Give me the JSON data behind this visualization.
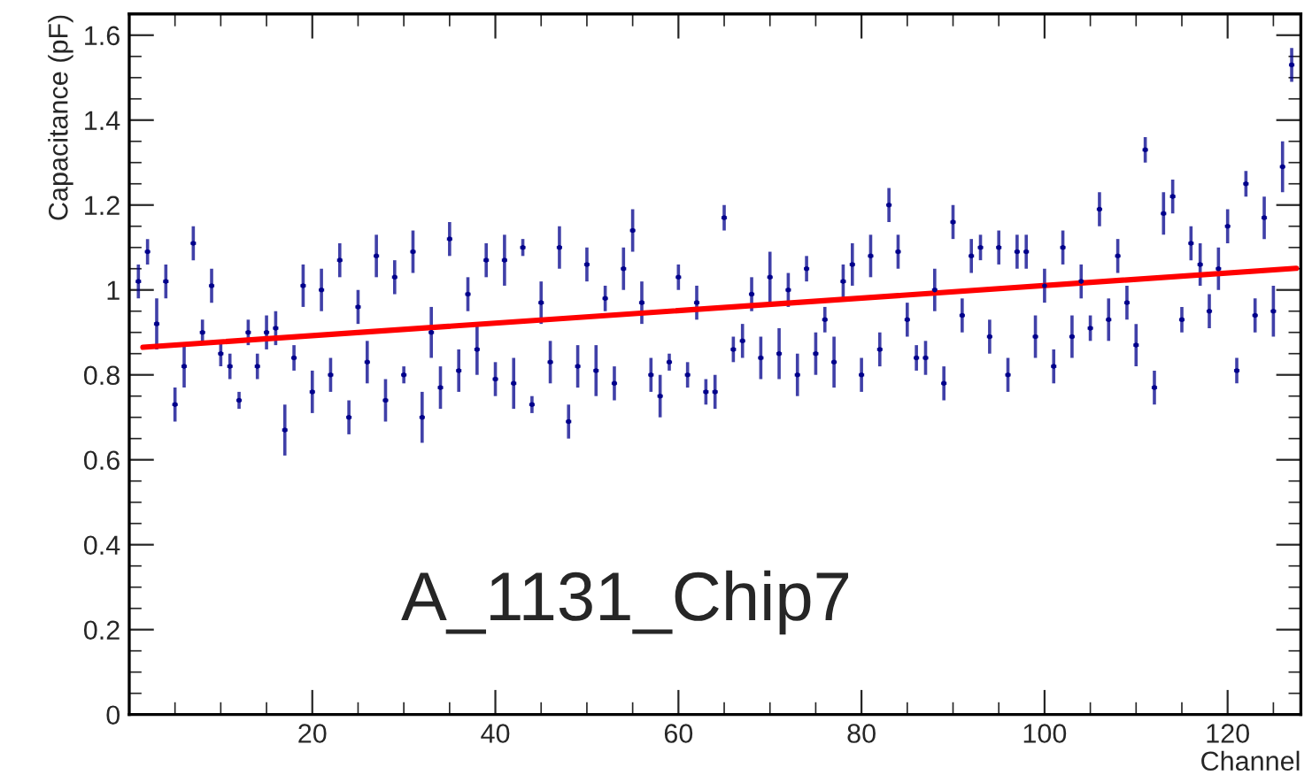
{
  "chart_data": {
    "type": "scatter",
    "xlabel": "Channel",
    "ylabel": "Capacitance (pF)",
    "annotations": [
      "A_1131_Chip7"
    ],
    "xlim": [
      0,
      128
    ],
    "xticks": [
      20,
      40,
      60,
      80,
      100,
      120
    ],
    "ylim": [
      0,
      1.65
    ],
    "yticks": [
      0,
      0.2,
      0.4,
      0.6,
      0.8,
      1,
      1.2,
      1.4,
      1.6
    ],
    "grid": false,
    "series": [
      {
        "color": "#00008b",
        "marker": "circle",
        "x": [
          1,
          2,
          3,
          4,
          5,
          6,
          7,
          8,
          9,
          10,
          11,
          12,
          13,
          14,
          15,
          16,
          17,
          18,
          19,
          20,
          21,
          22,
          23,
          24,
          25,
          26,
          27,
          28,
          29,
          30,
          31,
          32,
          33,
          34,
          35,
          36,
          37,
          38,
          39,
          40,
          41,
          42,
          43,
          44,
          45,
          46,
          47,
          48,
          49,
          50,
          51,
          52,
          53,
          54,
          55,
          56,
          57,
          58,
          59,
          60,
          61,
          62,
          63,
          64,
          65,
          66,
          67,
          68,
          69,
          70,
          71,
          72,
          73,
          74,
          75,
          76,
          77,
          78,
          79,
          80,
          81,
          82,
          83,
          84,
          85,
          86,
          87,
          88,
          89,
          90,
          91,
          92,
          93,
          94,
          95,
          96,
          97,
          98,
          99,
          100,
          101,
          102,
          103,
          104,
          105,
          106,
          107,
          108,
          109,
          110,
          111,
          112,
          113,
          114,
          115,
          116,
          117,
          118,
          119,
          120,
          121,
          122,
          123,
          124,
          125,
          126,
          127
        ],
        "values": [
          1.02,
          1.09,
          0.92,
          1.02,
          0.73,
          0.82,
          1.11,
          0.9,
          1.01,
          0.85,
          0.82,
          0.74,
          0.9,
          0.82,
          0.9,
          0.91,
          0.67,
          0.84,
          1.01,
          0.76,
          1.0,
          0.8,
          1.07,
          0.7,
          0.96,
          0.83,
          1.08,
          0.74,
          1.03,
          0.8,
          1.09,
          0.7,
          0.9,
          0.77,
          1.12,
          0.81,
          0.99,
          0.86,
          1.07,
          0.79,
          1.07,
          0.78,
          1.1,
          0.73,
          0.97,
          0.83,
          1.1,
          0.69,
          0.82,
          1.06,
          0.81,
          0.98,
          0.78,
          1.05,
          1.14,
          0.97,
          0.8,
          0.75,
          0.83,
          1.03,
          0.8,
          0.97,
          0.76,
          0.76,
          1.17,
          0.86,
          0.88,
          0.99,
          0.84,
          1.03,
          0.85,
          1.0,
          0.8,
          1.05,
          0.85,
          0.93,
          0.83,
          1.02,
          1.06,
          0.8,
          1.08,
          0.86,
          1.2,
          1.09,
          0.93,
          0.84,
          0.84,
          1.0,
          0.78,
          1.16,
          0.94,
          1.08,
          1.1,
          0.89,
          1.1,
          0.8,
          1.09,
          1.09,
          0.89,
          1.01,
          0.82,
          1.1,
          0.89,
          1.02,
          0.91,
          1.19,
          0.93,
          1.08,
          0.97,
          0.87,
          1.33,
          0.77,
          1.18,
          1.22,
          0.93,
          1.11,
          1.06,
          0.95,
          1.05,
          1.15,
          0.81,
          1.25,
          0.94,
          1.17,
          0.95,
          1.29,
          1.53
        ],
        "errors": [
          0.04,
          0.03,
          0.06,
          0.04,
          0.04,
          0.05,
          0.04,
          0.03,
          0.04,
          0.03,
          0.03,
          0.02,
          0.03,
          0.03,
          0.04,
          0.04,
          0.06,
          0.03,
          0.05,
          0.05,
          0.05,
          0.04,
          0.04,
          0.04,
          0.04,
          0.05,
          0.05,
          0.05,
          0.04,
          0.02,
          0.05,
          0.06,
          0.06,
          0.05,
          0.04,
          0.05,
          0.04,
          0.06,
          0.04,
          0.04,
          0.06,
          0.06,
          0.02,
          0.02,
          0.05,
          0.05,
          0.05,
          0.04,
          0.05,
          0.04,
          0.06,
          0.03,
          0.04,
          0.05,
          0.05,
          0.05,
          0.04,
          0.05,
          0.02,
          0.03,
          0.03,
          0.04,
          0.03,
          0.04,
          0.03,
          0.03,
          0.04,
          0.04,
          0.05,
          0.06,
          0.06,
          0.04,
          0.05,
          0.03,
          0.05,
          0.03,
          0.06,
          0.04,
          0.05,
          0.04,
          0.05,
          0.04,
          0.04,
          0.04,
          0.04,
          0.03,
          0.04,
          0.05,
          0.04,
          0.04,
          0.04,
          0.04,
          0.03,
          0.04,
          0.04,
          0.04,
          0.04,
          0.04,
          0.05,
          0.04,
          0.04,
          0.04,
          0.05,
          0.04,
          0.03,
          0.04,
          0.05,
          0.04,
          0.04,
          0.05,
          0.03,
          0.04,
          0.05,
          0.04,
          0.03,
          0.04,
          0.05,
          0.04,
          0.05,
          0.04,
          0.03,
          0.03,
          0.04,
          0.05,
          0.06,
          0.06,
          0.04
        ],
        "xerrors": [
          0.3,
          0.3,
          0.3,
          0.3,
          0.3,
          0.3,
          0.3,
          0.3,
          0.3,
          0.3,
          0.3,
          0.3,
          0.3,
          0.3,
          0.3,
          0.3,
          0.3,
          0.3,
          0.3,
          0.3,
          0.3,
          0.3,
          0.3,
          0.3,
          0.3,
          0.3,
          0.3,
          0.3,
          0.3,
          0.3,
          0.3,
          0.3,
          0.3,
          0.3,
          0.3,
          0.3,
          0.3,
          0.3,
          0.3,
          0.3,
          0.3,
          0.3,
          0.3,
          0.3,
          0.3,
          0.3,
          0.3,
          0.3,
          0.3,
          0.3,
          0.3,
          0.3,
          0.3,
          0.3,
          0.3,
          0.3,
          0.3,
          0.3,
          0.3,
          0.3,
          0.3,
          0.3,
          0.3,
          0.3,
          0.3,
          0.3,
          0.3,
          0.3,
          0.3,
          0.3,
          0.3,
          0.3,
          0.3,
          0.3,
          0.3,
          0.3,
          0.3,
          0.3,
          0.3,
          0.3,
          0.3,
          0.3,
          0.3,
          0.3,
          0.3,
          0.3,
          0.3,
          0.3,
          0.3,
          0.3,
          0.3,
          0.3,
          0.3,
          0.3,
          0.3,
          0.3,
          0.3,
          0.3,
          0.3,
          0.3,
          0.3,
          0.3,
          0.3,
          0.3,
          0.3,
          0.3,
          0.3,
          0.3,
          0.3,
          0.3,
          0.3,
          0.3,
          0.3,
          0.3,
          0.3,
          0.3,
          0.3,
          0.3,
          0.3,
          0.3,
          0.3,
          0.3,
          0.3,
          0.3,
          0.3,
          0.3,
          0.3
        ]
      },
      {
        "type": "line",
        "color": "#ff0000",
        "x": [
          1.5,
          127.5
        ],
        "values": [
          0.865,
          1.051
        ],
        "line_style": "solid"
      }
    ]
  }
}
